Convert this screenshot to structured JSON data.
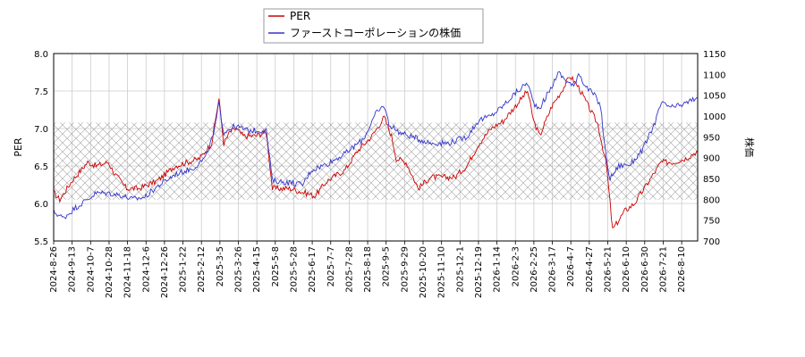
{
  "chart_data": {
    "type": "line",
    "ylabel_left": "PER",
    "ylabel_right": "株価",
    "ylim_left": [
      5.5,
      8.0
    ],
    "ylim_right": [
      700,
      1150
    ],
    "yticks_left": [
      "5.5",
      "6.0",
      "6.5",
      "7.0",
      "7.5",
      "8.0"
    ],
    "yticks_right": [
      "700",
      "750",
      "800",
      "850",
      "900",
      "950",
      "1000",
      "1050",
      "1100",
      "1150"
    ],
    "xticks": [
      "2024-8-26",
      "2024-9-13",
      "2024-10-7",
      "2024-10-28",
      "2024-11-18",
      "2024-12-6",
      "2024-12-26",
      "2025-1-22",
      "2025-2-12",
      "2025-3-5",
      "2025-3-26",
      "2025-4-15",
      "2025-5-8",
      "2025-5-28",
      "2025-6-17",
      "2025-7-7",
      "2025-7-28",
      "2025-8-18",
      "2025-9-5",
      "2025-9-29",
      "2025-10-20",
      "2025-11-10",
      "2025-12-1",
      "2025-12-19",
      "2026-1-14",
      "2026-2-3",
      "2026-2-25",
      "2026-3-17",
      "2026-4-7",
      "2026-4-27",
      "2026-5-21",
      "2026-6-10",
      "2026-6-30",
      "2026-7-21",
      "2026-8-10"
    ],
    "hatched_band": [
      6.05,
      7.08
    ],
    "grid": true,
    "legend_position": "top-center",
    "series": [
      {
        "name": "PER",
        "color": "#cc0000",
        "axis": "left",
        "keypoints": [
          [
            0,
            6.15
          ],
          [
            5,
            6.05
          ],
          [
            15,
            6.3
          ],
          [
            28,
            6.55
          ],
          [
            35,
            6.5
          ],
          [
            45,
            6.55
          ],
          [
            50,
            6.4
          ],
          [
            60,
            6.2
          ],
          [
            70,
            6.2
          ],
          [
            85,
            6.3
          ],
          [
            100,
            6.5
          ],
          [
            120,
            6.6
          ],
          [
            130,
            6.8
          ],
          [
            136,
            7.4
          ],
          [
            140,
            6.8
          ],
          [
            145,
            6.95
          ],
          [
            150,
            7.0
          ],
          [
            156,
            6.9
          ],
          [
            165,
            6.9
          ],
          [
            175,
            6.95
          ],
          [
            180,
            6.2
          ],
          [
            195,
            6.2
          ],
          [
            205,
            6.15
          ],
          [
            215,
            6.1
          ],
          [
            225,
            6.3
          ],
          [
            240,
            6.45
          ],
          [
            250,
            6.7
          ],
          [
            262,
            6.9
          ],
          [
            272,
            7.15
          ],
          [
            278,
            6.9
          ],
          [
            282,
            6.6
          ],
          [
            290,
            6.55
          ],
          [
            300,
            6.2
          ],
          [
            310,
            6.35
          ],
          [
            320,
            6.35
          ],
          [
            330,
            6.35
          ],
          [
            340,
            6.5
          ],
          [
            350,
            6.8
          ],
          [
            360,
            7.0
          ],
          [
            370,
            7.1
          ],
          [
            380,
            7.3
          ],
          [
            390,
            7.5
          ],
          [
            395,
            7.1
          ],
          [
            400,
            6.9
          ],
          [
            410,
            7.3
          ],
          [
            418,
            7.5
          ],
          [
            425,
            7.7
          ],
          [
            432,
            7.55
          ],
          [
            440,
            7.3
          ],
          [
            448,
            7.05
          ],
          [
            455,
            6.5
          ],
          [
            460,
            5.65
          ],
          [
            470,
            5.9
          ],
          [
            478,
            6.0
          ],
          [
            490,
            6.3
          ],
          [
            500,
            6.55
          ],
          [
            510,
            6.55
          ],
          [
            520,
            6.6
          ],
          [
            530,
            6.7
          ]
        ]
      },
      {
        "name": "ファーストコーポレーションの株価",
        "color": "#3333cc",
        "axis": "right",
        "keypoints": [
          [
            0,
            770
          ],
          [
            8,
            755
          ],
          [
            18,
            780
          ],
          [
            28,
            800
          ],
          [
            35,
            815
          ],
          [
            45,
            815
          ],
          [
            55,
            810
          ],
          [
            65,
            800
          ],
          [
            75,
            805
          ],
          [
            85,
            830
          ],
          [
            100,
            860
          ],
          [
            115,
            875
          ],
          [
            125,
            900
          ],
          [
            132,
            960
          ],
          [
            136,
            1030
          ],
          [
            140,
            960
          ],
          [
            145,
            970
          ],
          [
            150,
            975
          ],
          [
            160,
            965
          ],
          [
            175,
            965
          ],
          [
            180,
            845
          ],
          [
            195,
            840
          ],
          [
            205,
            835
          ],
          [
            212,
            870
          ],
          [
            225,
            885
          ],
          [
            240,
            910
          ],
          [
            255,
            945
          ],
          [
            265,
            1005
          ],
          [
            272,
            1025
          ],
          [
            276,
            980
          ],
          [
            285,
            960
          ],
          [
            295,
            950
          ],
          [
            310,
            935
          ],
          [
            325,
            935
          ],
          [
            340,
            950
          ],
          [
            350,
            990
          ],
          [
            360,
            1000
          ],
          [
            370,
            1025
          ],
          [
            380,
            1055
          ],
          [
            390,
            1080
          ],
          [
            395,
            1030
          ],
          [
            400,
            1020
          ],
          [
            410,
            1070
          ],
          [
            415,
            1105
          ],
          [
            420,
            1090
          ],
          [
            428,
            1070
          ],
          [
            432,
            1105
          ],
          [
            438,
            1070
          ],
          [
            445,
            1050
          ],
          [
            450,
            1025
          ],
          [
            455,
            890
          ],
          [
            458,
            850
          ],
          [
            465,
            880
          ],
          [
            475,
            885
          ],
          [
            485,
            920
          ],
          [
            495,
            985
          ],
          [
            500,
            1030
          ],
          [
            510,
            1020
          ],
          [
            520,
            1030
          ],
          [
            530,
            1045
          ]
        ]
      }
    ]
  }
}
